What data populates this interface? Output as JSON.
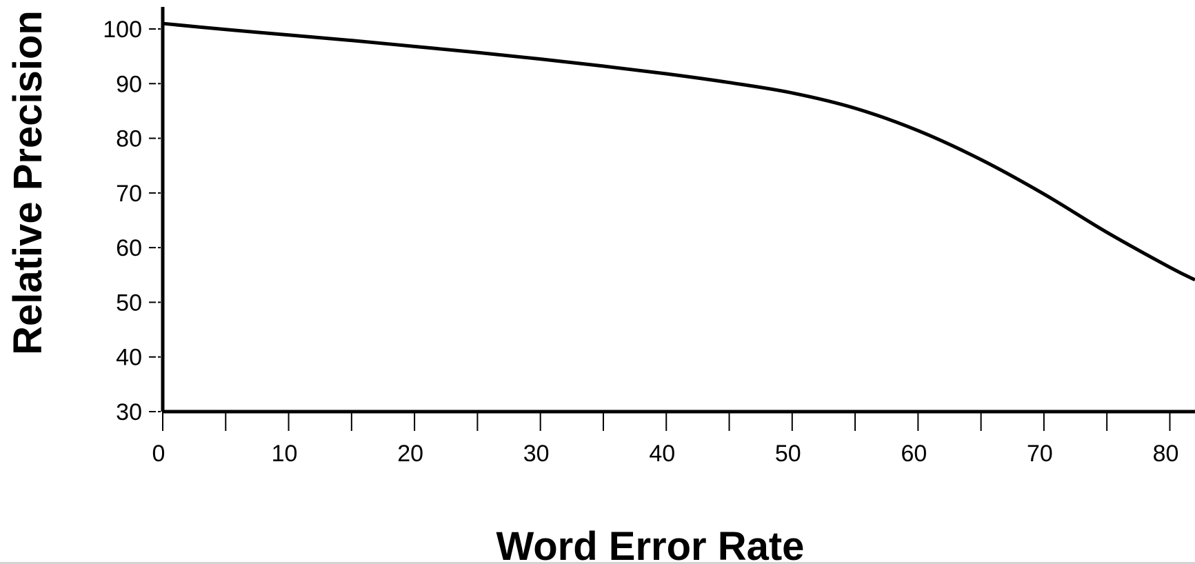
{
  "chart_data": {
    "type": "line",
    "title": "",
    "xlabel": "Word Error Rate",
    "ylabel": "Relative Precision",
    "xlim": [
      0,
      82
    ],
    "ylim": [
      30,
      100
    ],
    "x_ticks": [
      0,
      10,
      20,
      30,
      40,
      50,
      60,
      70,
      80
    ],
    "y_ticks": [
      30,
      40,
      50,
      60,
      70,
      80,
      90,
      100
    ],
    "grid": false,
    "series": [
      {
        "color": "#000000",
        "x": [
          0,
          5,
          10,
          15,
          20,
          25,
          30,
          35,
          40,
          45,
          50,
          55,
          60,
          65,
          70,
          75,
          80,
          82
        ],
        "y": [
          101,
          99.9,
          98.9,
          97.9,
          96.8,
          95.7,
          94.5,
          93.2,
          91.8,
          90.2,
          88.3,
          85.5,
          81.4,
          76.1,
          69.8,
          62.8,
          56.4,
          54.1
        ]
      }
    ]
  }
}
